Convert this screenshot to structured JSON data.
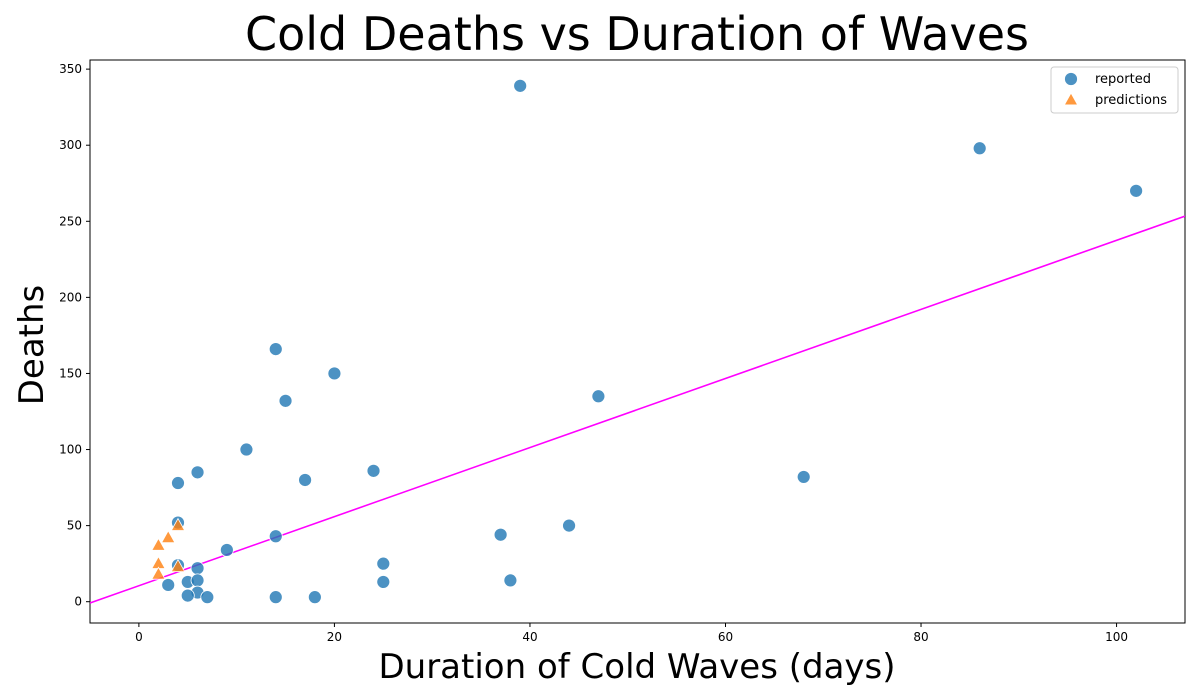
{
  "chart_data": {
    "type": "scatter",
    "title": "Cold Deaths vs Duration of Waves",
    "xlabel": "Duration of Cold Waves (days)",
    "ylabel": "Deaths",
    "xlim": [
      -5,
      107
    ],
    "ylim": [
      -14,
      356
    ],
    "xticks": [
      0,
      20,
      40,
      60,
      80,
      100
    ],
    "yticks": [
      0,
      50,
      100,
      150,
      200,
      250,
      300,
      350
    ],
    "grid": false,
    "legend_position": "top-right",
    "series": [
      {
        "name": "reported",
        "marker": "circle",
        "color": "#1f77b4",
        "points": [
          [
            39,
            339
          ],
          [
            86,
            298
          ],
          [
            102,
            270
          ],
          [
            14,
            166
          ],
          [
            20,
            150
          ],
          [
            15,
            132
          ],
          [
            47,
            135
          ],
          [
            11,
            100
          ],
          [
            6,
            85
          ],
          [
            24,
            86
          ],
          [
            4,
            78
          ],
          [
            17,
            80
          ],
          [
            68,
            82
          ],
          [
            4,
            52
          ],
          [
            44,
            50
          ],
          [
            14,
            43
          ],
          [
            37,
            44
          ],
          [
            9,
            34
          ],
          [
            25,
            25
          ],
          [
            4,
            24
          ],
          [
            6,
            22
          ],
          [
            5,
            13
          ],
          [
            6,
            14
          ],
          [
            25,
            13
          ],
          [
            38,
            14
          ],
          [
            3,
            11
          ],
          [
            6,
            6
          ],
          [
            5,
            4
          ],
          [
            7,
            3
          ],
          [
            14,
            3
          ],
          [
            18,
            3
          ]
        ]
      },
      {
        "name": "predictions",
        "marker": "triangle",
        "color": "#ff7f0e",
        "points": [
          [
            2,
            37
          ],
          [
            3,
            42
          ],
          [
            4,
            50
          ],
          [
            2,
            25
          ],
          [
            4,
            23
          ],
          [
            2,
            18
          ]
        ]
      }
    ],
    "trend_line": {
      "color": "#ff00ff",
      "intercept": 10.5,
      "slope": 2.27
    }
  }
}
